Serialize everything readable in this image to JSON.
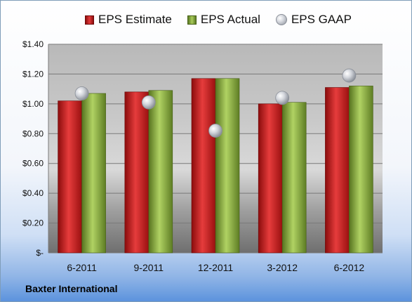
{
  "company": "Baxter International",
  "chart_data": {
    "type": "bar",
    "categories": [
      "6-2011",
      "9-2011",
      "12-2011",
      "3-2012",
      "6-2012"
    ],
    "series": [
      {
        "name": "EPS Estimate",
        "kind": "bar",
        "color": "#cc2222",
        "values": [
          1.02,
          1.08,
          1.17,
          1.0,
          1.11
        ]
      },
      {
        "name": "EPS Actual",
        "kind": "bar",
        "color": "#8db53f",
        "values": [
          1.07,
          1.09,
          1.17,
          1.01,
          1.12
        ]
      },
      {
        "name": "EPS GAAP",
        "kind": "scatter",
        "color": "#b8bcc4",
        "values": [
          1.07,
          1.01,
          0.82,
          1.04,
          1.19
        ]
      }
    ],
    "yticks": [
      {
        "value": 1.4,
        "label": "$1.40"
      },
      {
        "value": 1.2,
        "label": "$1.20"
      },
      {
        "value": 1.0,
        "label": "$1.00"
      },
      {
        "value": 0.8,
        "label": "$0.80"
      },
      {
        "value": 0.6,
        "label": "$0.60"
      },
      {
        "value": 0.4,
        "label": "$0.40"
      },
      {
        "value": 0.2,
        "label": "$0.20"
      },
      {
        "value": 0.0,
        "label": "$-"
      }
    ],
    "ylim": [
      0,
      1.4
    ],
    "grid": true,
    "legend": "top"
  }
}
